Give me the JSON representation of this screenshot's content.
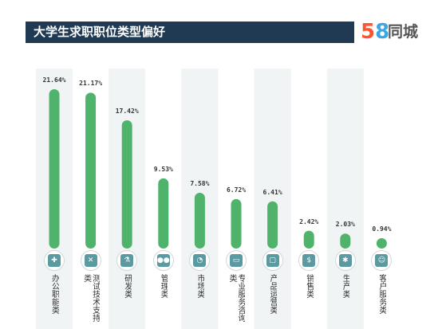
{
  "header": {
    "title": "大学生求职职位类型偏好"
  },
  "logo": {
    "digit_5": "5",
    "digit_8": "8",
    "text": "同城"
  },
  "colors": {
    "bar": "#4fb36b",
    "band": "#f1f4f4",
    "header_bg": "#1f3a52",
    "icon": "#5b9aa0"
  },
  "chart_data": {
    "type": "bar",
    "categories": [
      "办公职能类",
      "测试技术支持类",
      "研发类",
      "管理类",
      "市场类",
      "专业服务咨询类",
      "产品运营类",
      "销售类",
      "生产类",
      "客户服务类"
    ],
    "values": [
      21.64,
      21.17,
      17.42,
      9.53,
      7.58,
      6.72,
      6.41,
      2.42,
      2.03,
      0.94
    ],
    "value_labels": [
      "21.64%",
      "21.17%",
      "17.42%",
      "9.53%",
      "7.58%",
      "6.72%",
      "6.41%",
      "2.42%",
      "2.03%",
      "0.94%"
    ],
    "icons": [
      "puzzle-icon",
      "gear-cross-icon",
      "flask-icon",
      "people-icon",
      "pie-chart-icon",
      "chat-icon",
      "monitor-icon",
      "money-bag-icon",
      "gear-icon",
      "customer-service-icon"
    ],
    "title": "大学生求职职位类型偏好",
    "xlabel": "",
    "ylabel": "",
    "ylim": [
      0,
      21.64
    ]
  }
}
